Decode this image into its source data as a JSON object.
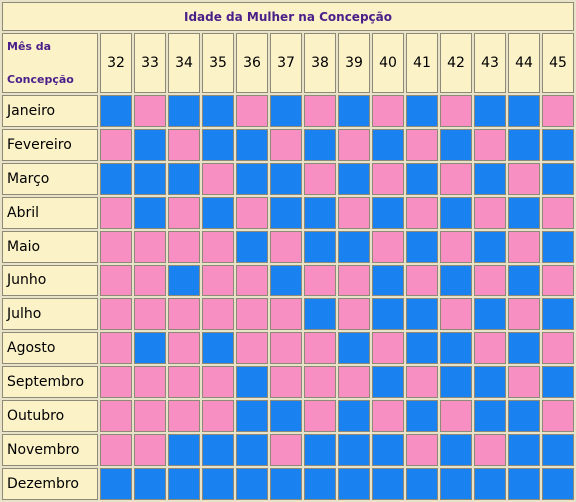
{
  "title": "Idade da Mulher na Concepção",
  "corner_label_line1": "Mês da",
  "corner_label_line2": "Concepção",
  "colors": {
    "b": "#1a82f0",
    "g": "#f78fc2",
    "header_bg": "#fbf2c7",
    "title_text": "#4b1f8a"
  },
  "ages": [
    "32",
    "33",
    "34",
    "35",
    "36",
    "37",
    "38",
    "39",
    "40",
    "41",
    "42",
    "43",
    "44",
    "45"
  ],
  "rows": [
    {
      "month": "Janeiro",
      "cells": [
        "b",
        "g",
        "b",
        "b",
        "g",
        "b",
        "g",
        "b",
        "g",
        "b",
        "g",
        "b",
        "b",
        "g"
      ]
    },
    {
      "month": "Fevereiro",
      "cells": [
        "g",
        "b",
        "g",
        "b",
        "b",
        "g",
        "b",
        "g",
        "b",
        "g",
        "b",
        "g",
        "b",
        "b"
      ]
    },
    {
      "month": "Março",
      "cells": [
        "b",
        "b",
        "b",
        "g",
        "b",
        "b",
        "g",
        "b",
        "g",
        "b",
        "g",
        "b",
        "g",
        "b"
      ]
    },
    {
      "month": "Abril",
      "cells": [
        "g",
        "b",
        "g",
        "b",
        "g",
        "b",
        "b",
        "g",
        "b",
        "g",
        "b",
        "g",
        "b",
        "g"
      ]
    },
    {
      "month": "Maio",
      "cells": [
        "g",
        "g",
        "g",
        "g",
        "b",
        "g",
        "b",
        "b",
        "g",
        "b",
        "g",
        "b",
        "g",
        "b"
      ]
    },
    {
      "month": "Junho",
      "cells": [
        "g",
        "g",
        "b",
        "g",
        "g",
        "b",
        "g",
        "g",
        "b",
        "g",
        "b",
        "g",
        "b",
        "g"
      ]
    },
    {
      "month": "Julho",
      "cells": [
        "g",
        "g",
        "g",
        "g",
        "g",
        "g",
        "b",
        "g",
        "b",
        "b",
        "g",
        "b",
        "g",
        "b"
      ]
    },
    {
      "month": "Agosto",
      "cells": [
        "g",
        "b",
        "g",
        "b",
        "g",
        "g",
        "g",
        "b",
        "g",
        "b",
        "b",
        "g",
        "b",
        "g"
      ]
    },
    {
      "month": "Septembro",
      "cells": [
        "g",
        "g",
        "g",
        "g",
        "b",
        "g",
        "g",
        "g",
        "b",
        "g",
        "b",
        "b",
        "g",
        "b"
      ]
    },
    {
      "month": "Outubro",
      "cells": [
        "g",
        "g",
        "g",
        "g",
        "b",
        "b",
        "g",
        "b",
        "g",
        "b",
        "g",
        "b",
        "b",
        "g"
      ]
    },
    {
      "month": "Novembro",
      "cells": [
        "g",
        "g",
        "b",
        "b",
        "b",
        "g",
        "b",
        "b",
        "b",
        "g",
        "b",
        "g",
        "b",
        "b"
      ]
    },
    {
      "month": "Dezembro",
      "cells": [
        "b",
        "b",
        "b",
        "b",
        "b",
        "b",
        "b",
        "b",
        "b",
        "b",
        "b",
        "b",
        "b",
        "b"
      ]
    }
  ]
}
